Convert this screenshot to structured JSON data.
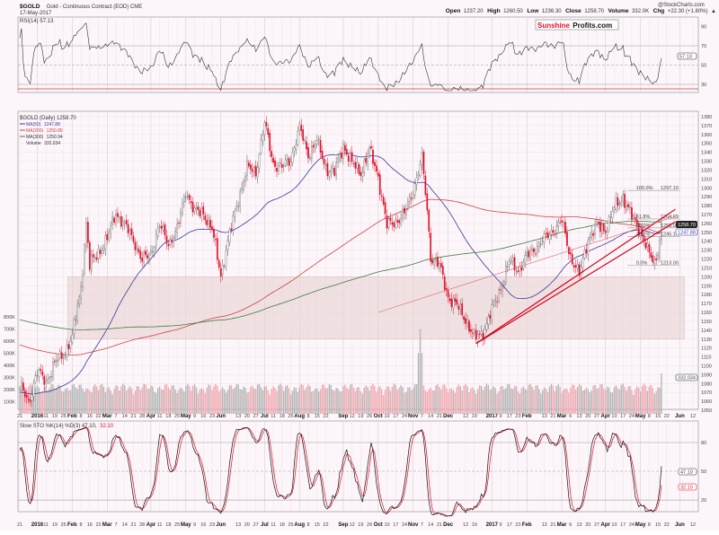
{
  "header": {
    "symbol": "$GOLD",
    "description": "Gold - Continuous Contract (EOD) CME",
    "date": "17-May-2017",
    "copyright": "@StockCharts.com",
    "open_label": "Open",
    "open": "1237.20",
    "high_label": "High",
    "high": "1260.50",
    "low_label": "Low",
    "low": "1236.30",
    "close_label": "Close",
    "close": "1258.70",
    "volume_label": "Volume",
    "volume": "332.0K",
    "chg_label": "Chg",
    "chg": "+22.30 (+1.80%)",
    "chg_arrow": "▲"
  },
  "logo": {
    "part1": "Sunshine",
    "part2": "Profits.com"
  },
  "colors": {
    "up": "#8c8c8c",
    "down": "#e0102a",
    "ma50": "#3a3a9a",
    "ma200": "#d04040",
    "ma300": "#3f7a3f",
    "bg": "#fcf6fa"
  },
  "chart_data": [
    {
      "type": "line",
      "panel": "RSI",
      "title": "RSI(14) 57.13",
      "current": "57.13",
      "yticks": [
        "90",
        "70",
        "50",
        "30",
        "10"
      ],
      "ylim": [
        0,
        100
      ],
      "note": "computed from price series"
    },
    {
      "type": "candlestick",
      "panel": "price",
      "title": "$GOLD (Daily) 1258.70",
      "legend": [
        {
          "name": "MA(50)",
          "value": "1247.88"
        },
        {
          "name": "MA(200)",
          "value": "1250.89"
        },
        {
          "name": "MA(300)",
          "value": "1250.94"
        },
        {
          "name": "Volume",
          "value": "332,034"
        }
      ],
      "x_unit": "weeks since 21-Dec-2015",
      "key_points": [
        [
          0,
          1075
        ],
        [
          1,
          1062
        ],
        [
          2,
          1090
        ],
        [
          3,
          1085
        ],
        [
          4,
          1100
        ],
        [
          5,
          1115
        ],
        [
          6,
          1130
        ],
        [
          7,
          1190
        ],
        [
          7.6,
          1260
        ],
        [
          8,
          1210
        ],
        [
          9,
          1230
        ],
        [
          10,
          1240
        ],
        [
          11,
          1275
        ],
        [
          12,
          1255
        ],
        [
          13,
          1245
        ],
        [
          14,
          1215
        ],
        [
          15,
          1230
        ],
        [
          16,
          1255
        ],
        [
          17,
          1240
        ],
        [
          18,
          1250
        ],
        [
          19,
          1300
        ],
        [
          20,
          1270
        ],
        [
          21,
          1275
        ],
        [
          22,
          1250
        ],
        [
          23,
          1205
        ],
        [
          24,
          1245
        ],
        [
          25,
          1290
        ],
        [
          26,
          1320
        ],
        [
          27,
          1320
        ],
        [
          28,
          1370
        ],
        [
          29,
          1330
        ],
        [
          30,
          1320
        ],
        [
          31,
          1335
        ],
        [
          32,
          1365
        ],
        [
          33,
          1340
        ],
        [
          34,
          1350
        ],
        [
          35,
          1325
        ],
        [
          36,
          1315
        ],
        [
          37,
          1350
        ],
        [
          38,
          1325
        ],
        [
          39,
          1320
        ],
        [
          40,
          1340
        ],
        [
          41,
          1315
        ],
        [
          42,
          1255
        ],
        [
          43,
          1265
        ],
        [
          44,
          1268
        ],
        [
          45,
          1300
        ],
        [
          46,
          1330
        ],
        [
          46.6,
          1275
        ],
        [
          47,
          1225
        ],
        [
          48,
          1210
        ],
        [
          49,
          1180
        ],
        [
          50,
          1165
        ],
        [
          51,
          1155
        ],
        [
          52,
          1128
        ],
        [
          53,
          1140
        ],
        [
          54,
          1160
        ],
        [
          55,
          1190
        ],
        [
          56,
          1215
        ],
        [
          57,
          1210
        ],
        [
          58,
          1220
        ],
        [
          59,
          1235
        ],
        [
          60,
          1240
        ],
        [
          61,
          1255
        ],
        [
          62,
          1260
        ],
        [
          63,
          1225
        ],
        [
          64,
          1200
        ],
        [
          65,
          1245
        ],
        [
          66,
          1255
        ],
        [
          67,
          1255
        ],
        [
          68,
          1275
        ],
        [
          69,
          1292
        ],
        [
          70,
          1265
        ],
        [
          71,
          1255
        ],
        [
          72,
          1222
        ],
        [
          72.6,
          1216
        ],
        [
          73,
          1232
        ],
        [
          73.4,
          1258.7
        ]
      ],
      "ylim": [
        1050,
        1380
      ],
      "yticks": [
        "1380",
        "1370",
        "1360",
        "1350",
        "1340",
        "1330",
        "1320",
        "1310",
        "1300",
        "1290",
        "1280",
        "1270",
        "1260",
        "1250",
        "1240",
        "1230",
        "1220",
        "1210",
        "1200",
        "1190",
        "1180",
        "1170",
        "1160",
        "1150",
        "1140",
        "1130",
        "1120",
        "1110",
        "1100",
        "1090",
        "1080",
        "1070",
        "1060",
        "1050"
      ],
      "volume_ticks": [
        "800K",
        "700K",
        "600K",
        "500K",
        "400K",
        "300K",
        "200K",
        "100K"
      ],
      "support_zone": [
        1130,
        1200
      ],
      "fibonacci": [
        {
          "level": "100.0%",
          "price": 1297.1,
          "label": "1297.10"
        },
        {
          "level": "61.8%",
          "price": 1264.99,
          "label": "1264.99"
        },
        {
          "level": "50.0%",
          "price": 1255.06,
          "label": "1255.06"
        },
        {
          "level": "38.2%",
          "price": 1245.14,
          "label": "1245.14"
        },
        {
          "level": "0.0%",
          "price": 1213.0,
          "label": "1213.00"
        }
      ],
      "trendlines": [
        [
          [
            52.2,
            1125
          ],
          [
            75,
            1276
          ]
        ],
        [
          [
            52.2,
            1125
          ],
          [
            75,
            1262
          ]
        ]
      ],
      "badges": {
        "close": "1258.70",
        "ma50": "1247.88",
        "volume": "332,034"
      }
    },
    {
      "type": "line",
      "panel": "Slow Stochastic",
      "title": "Slow STO %K(14) %D(3) 47.10,",
      "d_value": "32.10",
      "k_badge": "47.10",
      "d_badge": "32.10",
      "yticks": [
        "80",
        "50",
        "20"
      ],
      "ylim": [
        0,
        100
      ]
    }
  ],
  "x_axis": [
    {
      "w": 0,
      "t": "21"
    },
    {
      "w": 2,
      "t": "2016",
      "b": 1
    },
    {
      "w": 3,
      "t": "11"
    },
    {
      "w": 4,
      "t": "19"
    },
    {
      "w": 5,
      "t": "25"
    },
    {
      "w": 6,
      "t": "Feb",
      "b": 1
    },
    {
      "w": 7,
      "t": "8"
    },
    {
      "w": 8,
      "t": "16"
    },
    {
      "w": 9,
      "t": "22"
    },
    {
      "w": 10,
      "t": "Mar",
      "b": 1
    },
    {
      "w": 11,
      "t": "7"
    },
    {
      "w": 12,
      "t": "14"
    },
    {
      "w": 13,
      "t": "21"
    },
    {
      "w": 14,
      "t": "28"
    },
    {
      "w": 15,
      "t": "Apr",
      "b": 1
    },
    {
      "w": 16,
      "t": "11"
    },
    {
      "w": 17,
      "t": "18"
    },
    {
      "w": 18,
      "t": "25"
    },
    {
      "w": 19,
      "t": "May",
      "b": 1
    },
    {
      "w": 20,
      "t": "9"
    },
    {
      "w": 21,
      "t": "16"
    },
    {
      "w": 22,
      "t": "23"
    },
    {
      "w": 23,
      "t": "Jun",
      "b": 1
    },
    {
      "w": 25,
      "t": "13"
    },
    {
      "w": 26,
      "t": "20"
    },
    {
      "w": 27,
      "t": "27"
    },
    {
      "w": 28,
      "t": "Jul",
      "b": 1
    },
    {
      "w": 29,
      "t": "11"
    },
    {
      "w": 30,
      "t": "18"
    },
    {
      "w": 31,
      "t": "25"
    },
    {
      "w": 32,
      "t": "Aug",
      "b": 1
    },
    {
      "w": 33,
      "t": "8"
    },
    {
      "w": 34,
      "t": "15"
    },
    {
      "w": 35,
      "t": "22"
    },
    {
      "w": 37,
      "t": "Sep",
      "b": 1
    },
    {
      "w": 38,
      "t": "12"
    },
    {
      "w": 39,
      "t": "19"
    },
    {
      "w": 40,
      "t": "26"
    },
    {
      "w": 41,
      "t": "Oct",
      "b": 1
    },
    {
      "w": 42,
      "t": "10"
    },
    {
      "w": 43,
      "t": "17"
    },
    {
      "w": 44,
      "t": "24"
    },
    {
      "w": 45,
      "t": "Nov",
      "b": 1
    },
    {
      "w": 46,
      "t": "7"
    },
    {
      "w": 47,
      "t": "14"
    },
    {
      "w": 48,
      "t": "21"
    },
    {
      "w": 49,
      "t": "Dec",
      "b": 1
    },
    {
      "w": 51,
      "t": "12"
    },
    {
      "w": 52,
      "t": "19"
    },
    {
      "w": 54,
      "t": "2017",
      "b": 1
    },
    {
      "w": 55,
      "t": "9"
    },
    {
      "w": 56,
      "t": "17"
    },
    {
      "w": 57,
      "t": "23"
    },
    {
      "w": 58,
      "t": "Feb",
      "b": 1
    },
    {
      "w": 60,
      "t": "13"
    },
    {
      "w": 61,
      "t": "21"
    },
    {
      "w": 62,
      "t": "Mar",
      "b": 1
    },
    {
      "w": 63,
      "t": "6"
    },
    {
      "w": 64,
      "t": "13"
    },
    {
      "w": 65,
      "t": "20"
    },
    {
      "w": 66,
      "t": "27"
    },
    {
      "w": 67,
      "t": "Apr",
      "b": 1
    },
    {
      "w": 68,
      "t": "10"
    },
    {
      "w": 69,
      "t": "17"
    },
    {
      "w": 70,
      "t": "24"
    },
    {
      "w": 71,
      "t": "May",
      "b": 1
    },
    {
      "w": 72,
      "t": "8"
    },
    {
      "w": 73,
      "t": "15"
    },
    {
      "w": 74,
      "t": "22"
    },
    {
      "w": 75.5,
      "t": "Jun",
      "b": 1
    },
    {
      "w": 77,
      "t": "12"
    }
  ]
}
